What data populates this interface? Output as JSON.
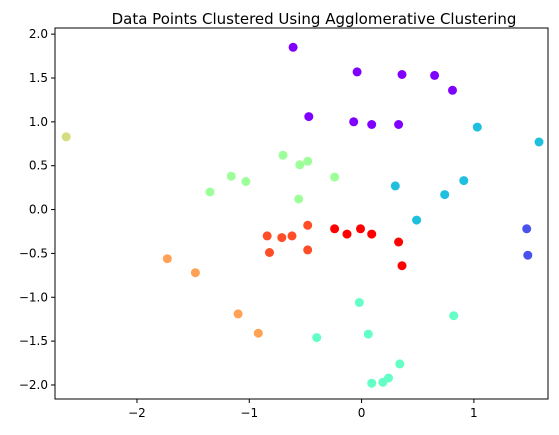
{
  "chart_data": {
    "type": "scatter",
    "title": "Data Points Clustered Using Agglomerative Clustering",
    "xlabel": "",
    "ylabel": "",
    "xlim": [
      -2.73,
      1.66
    ],
    "ylim": [
      -2.16,
      2.07
    ],
    "grid": false,
    "xticks": [
      -2,
      -1,
      0,
      1
    ],
    "yticks": [
      -2.0,
      -1.5,
      -1.0,
      -0.5,
      0.0,
      0.5,
      1.0,
      1.5,
      2.0
    ],
    "xtick_labels": [
      "−2",
      "−1",
      "0",
      "1"
    ],
    "ytick_labels": [
      "−2.0",
      "−1.5",
      "−1.0",
      "−0.5",
      "0.0",
      "0.5",
      "1.0",
      "1.5",
      "2.0"
    ],
    "series": [
      {
        "color": "#8000ff",
        "points": [
          [
            -0.61,
            1.85
          ],
          [
            -0.04,
            1.57
          ],
          [
            0.36,
            1.54
          ],
          [
            0.65,
            1.53
          ],
          [
            0.81,
            1.36
          ],
          [
            -0.47,
            1.06
          ],
          [
            -0.07,
            1.0
          ],
          [
            0.09,
            0.97
          ],
          [
            0.33,
            0.97
          ]
        ]
      },
      {
        "color": "#4a52ee",
        "points": [
          [
            1.47,
            -0.22
          ],
          [
            1.48,
            -0.52
          ]
        ]
      },
      {
        "color": "#1fbfe0",
        "points": [
          [
            1.03,
            0.94
          ],
          [
            1.58,
            0.77
          ],
          [
            0.3,
            0.27
          ],
          [
            0.91,
            0.33
          ],
          [
            0.74,
            0.17
          ],
          [
            0.49,
            -0.12
          ]
        ]
      },
      {
        "color": "#64ffc7",
        "points": [
          [
            -0.02,
            -1.06
          ],
          [
            0.82,
            -1.21
          ],
          [
            0.06,
            -1.42
          ],
          [
            -0.4,
            -1.46
          ],
          [
            0.34,
            -1.76
          ],
          [
            0.24,
            -1.92
          ],
          [
            0.19,
            -1.97
          ],
          [
            0.09,
            -1.98
          ]
        ]
      },
      {
        "color": "#9dff9a",
        "points": [
          [
            -0.7,
            0.62
          ],
          [
            -0.48,
            0.55
          ],
          [
            -0.55,
            0.51
          ],
          [
            -1.16,
            0.38
          ],
          [
            -1.03,
            0.32
          ],
          [
            -0.24,
            0.37
          ],
          [
            -1.35,
            0.2
          ],
          [
            -0.56,
            0.12
          ]
        ]
      },
      {
        "color": "#d4dd80",
        "points": [
          [
            -2.63,
            0.83
          ]
        ]
      },
      {
        "color": "#ffa256",
        "points": [
          [
            -1.73,
            -0.56
          ],
          [
            -1.48,
            -0.72
          ],
          [
            -1.1,
            -1.19
          ],
          [
            -0.92,
            -1.41
          ]
        ]
      },
      {
        "color": "#ff4d28",
        "points": [
          [
            -0.48,
            -0.18
          ],
          [
            -0.84,
            -0.3
          ],
          [
            -0.62,
            -0.3
          ],
          [
            -0.71,
            -0.32
          ],
          [
            -0.82,
            -0.49
          ],
          [
            -0.48,
            -0.46
          ]
        ]
      },
      {
        "color": "#ff0000",
        "points": [
          [
            -0.24,
            -0.22
          ],
          [
            -0.01,
            -0.22
          ],
          [
            -0.13,
            -0.28
          ],
          [
            0.09,
            -0.28
          ],
          [
            0.33,
            -0.37
          ],
          [
            0.36,
            -0.64
          ]
        ]
      }
    ]
  }
}
